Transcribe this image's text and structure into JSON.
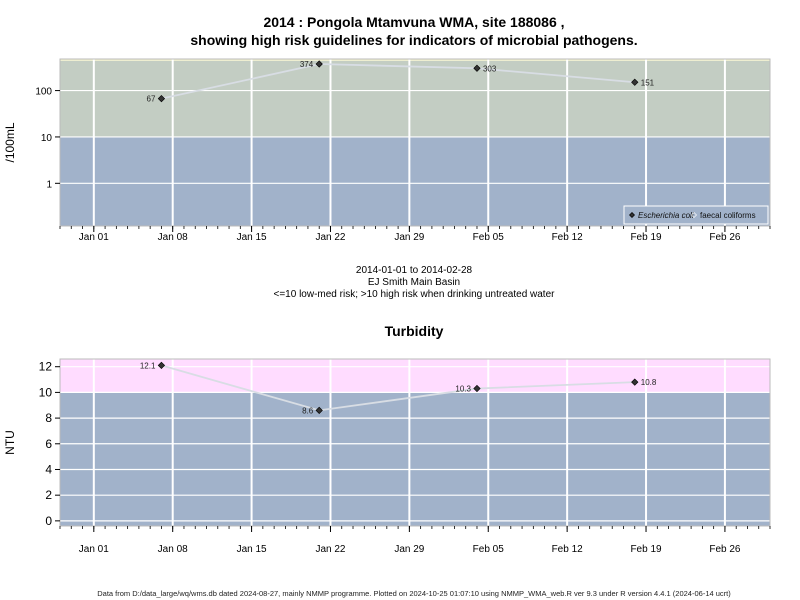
{
  "chart_data": [
    {
      "type": "line",
      "title": "2014 : Pongola Mtamvuna WMA, site 188086 ,",
      "subtitle": "showing high risk guidelines for indicators of microbial pathogens.",
      "ylabel": "/100mL",
      "yscale": "log",
      "ylim": [
        0.12,
        480
      ],
      "y_ticks": [
        1,
        10,
        100
      ],
      "y_tick_labels": [
        "1",
        "10",
        "100"
      ],
      "x_ticks": [
        "2014-01-01",
        "2014-01-08",
        "2014-01-15",
        "2014-01-22",
        "2014-01-29",
        "2014-02-05",
        "2014-02-12",
        "2014-02-19",
        "2014-02-26"
      ],
      "x_tick_labels": [
        "Jan 01",
        "Jan 08",
        "Jan 15",
        "Jan 22",
        "Jan 29",
        "Feb 05",
        "Feb 12",
        "Feb 19",
        "Feb 26"
      ],
      "xlim": [
        "2013-12-29",
        "2014-03-02"
      ],
      "bands": [
        {
          "from": 0.12,
          "to": 10,
          "color": "#a1b2ca"
        },
        {
          "from": 10,
          "to": 440,
          "color": "#c3cdc3"
        },
        {
          "from": 440,
          "to": 480,
          "color": "#f2f0cc"
        }
      ],
      "grid": true,
      "legend_position": "bottom-right",
      "series": [
        {
          "name": "Escherichia coli",
          "marker": "filled-diamond",
          "color": "#333333",
          "line_color": "#d8dde4",
          "points": [
            {
              "date": "2014-01-07",
              "value": 67,
              "label": "67",
              "label_side": "left"
            },
            {
              "date": "2014-01-21",
              "value": 374,
              "label": "374",
              "label_side": "left"
            },
            {
              "date": "2014-02-04",
              "value": 303,
              "label": "303",
              "label_side": "right"
            },
            {
              "date": "2014-02-18",
              "value": 151,
              "label": "151",
              "label_side": "right"
            }
          ]
        },
        {
          "name": "faecal coliforms",
          "marker": "open-diamond",
          "color": "#333333",
          "points": []
        }
      ],
      "below_caption": [
        "2014-01-01 to 2014-02-28",
        "EJ Smith Main Basin",
        "<=10 low-med risk; >10 high risk when drinking untreated water"
      ]
    },
    {
      "type": "line",
      "title": "Turbidity",
      "ylabel": "NTU",
      "ylim": [
        -0.4,
        12.6
      ],
      "y_ticks": [
        0,
        2,
        4,
        6,
        8,
        10,
        12
      ],
      "y_tick_labels": [
        "0",
        "2",
        "4",
        "6",
        "8",
        "10",
        "12"
      ],
      "x_ticks": [
        "2014-01-01",
        "2014-01-08",
        "2014-01-15",
        "2014-01-22",
        "2014-01-29",
        "2014-02-05",
        "2014-02-12",
        "2014-02-19",
        "2014-02-26"
      ],
      "x_tick_labels": [
        "Jan 01",
        "Jan 08",
        "Jan 15",
        "Jan 22",
        "Jan 29",
        "Feb 05",
        "Feb 12",
        "Feb 19",
        "Feb 26"
      ],
      "xlim": [
        "2013-12-29",
        "2014-03-02"
      ],
      "bands": [
        {
          "from": -0.4,
          "to": 10,
          "color": "#a1b2ca"
        },
        {
          "from": 10,
          "to": 12.6,
          "color": "#ffdcff"
        }
      ],
      "grid": true,
      "series": [
        {
          "marker": "filled-diamond",
          "color": "#333333",
          "line_color": "#d8dde4",
          "points": [
            {
              "date": "2014-01-07",
              "value": 12.1,
              "label": "12.1",
              "label_side": "left"
            },
            {
              "date": "2014-01-21",
              "value": 8.6,
              "label": "8.6",
              "label_side": "left"
            },
            {
              "date": "2014-02-04",
              "value": 10.3,
              "label": "10.3",
              "label_side": "left"
            },
            {
              "date": "2014-02-18",
              "value": 10.8,
              "label": "10.8",
              "label_side": "right"
            }
          ]
        }
      ]
    }
  ],
  "footer": {
    "text": "Data from D:/data_large/wq/wms.db dated 2024-08-27, mainly NMMP programme. Plotted on 2024-10-25 01:07:10 using NMMP_WMA_web.R ver 9.3 under R version 4.4.1 (2024-06-14 ucrt)"
  }
}
